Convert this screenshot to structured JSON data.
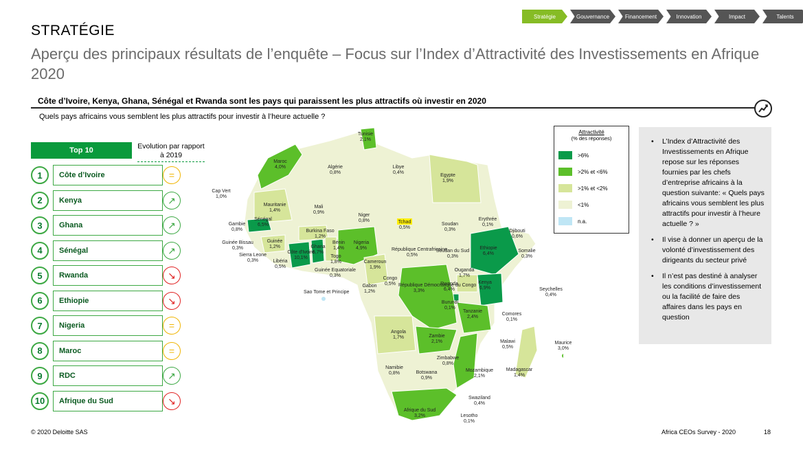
{
  "breadcrumb": [
    "Stratégie",
    "Gouvernance",
    "Financement",
    "Innovation",
    "Impact",
    "Talents"
  ],
  "section_title": "STRATÉGIE",
  "main_title": "Aperçu des principaux résultats de l’enquête – Focus sur l’Index d’Attractivité des Investissements en Afrique 2020",
  "headline": "Côte d’Ivoire, Kenya, Ghana, Sénégal et Rwanda sont les pays qui paraissent les plus attractifs où investir en 2020",
  "question": "Quels pays africains vous semblent les plus attractifs pour investir à l’heure actuelle ?",
  "top10": {
    "header": "Top 10",
    "evolution_header": "Evolution par rapport à 2019",
    "rows": [
      {
        "rank": "1",
        "country": "Côte d’Ivoire",
        "trend": "equal"
      },
      {
        "rank": "2",
        "country": "Kenya",
        "trend": "up"
      },
      {
        "rank": "3",
        "country": "Ghana",
        "trend": "up"
      },
      {
        "rank": "4",
        "country": "Sénégal",
        "trend": "up"
      },
      {
        "rank": "5",
        "country": "Rwanda",
        "trend": "down"
      },
      {
        "rank": "6",
        "country": "Ethiopie",
        "trend": "down"
      },
      {
        "rank": "7",
        "country": "Nigeria",
        "trend": "equal"
      },
      {
        "rank": "8",
        "country": "Maroc",
        "trend": "equal"
      },
      {
        "rank": "9",
        "country": "RDC",
        "trend": "up"
      },
      {
        "rank": "10",
        "country": "Afrique du Sud",
        "trend": "down"
      }
    ]
  },
  "trend_colors": {
    "equal": "#f0b400",
    "up": "#3ca843",
    "down": "#e02020"
  },
  "legend": {
    "title": "Attractivité",
    "subtitle": "(% des réponses)",
    "items": [
      {
        "label": ">6%",
        "color": "#0a9a4a"
      },
      {
        "label": ">2% et <6%",
        "color": "#5cbf2a"
      },
      {
        "label": ">1% et <2%",
        "color": "#d6e59a"
      },
      {
        "label": "<1%",
        "color": "#eef2d4"
      },
      {
        "label": "n.a.",
        "color": "#bfe6f5"
      }
    ]
  },
  "map_labels": [
    {
      "name": "Tunisie",
      "value": "2,1%"
    },
    {
      "name": "Maroc",
      "value": "4,0%"
    },
    {
      "name": "Algérie",
      "value": "0,8%"
    },
    {
      "name": "Libye",
      "value": "0,4%"
    },
    {
      "name": "Egypte",
      "value": "1,9%"
    },
    {
      "name": "Cap Vert",
      "value": "1,0%"
    },
    {
      "name": "Mauritanie",
      "value": "1,4%"
    },
    {
      "name": "Mali",
      "value": "0,9%"
    },
    {
      "name": "Niger",
      "value": "0,8%"
    },
    {
      "name": "Tchad",
      "value": "0,5%"
    },
    {
      "name": "Soudan",
      "value": "0,3%"
    },
    {
      "name": "Erythrée",
      "value": "0,1%"
    },
    {
      "name": "Djibouti",
      "value": "0,6%"
    },
    {
      "name": "Gambie",
      "value": "0,8%"
    },
    {
      "name": "Sénégal",
      "value": "6,5%"
    },
    {
      "name": "Guinée Bissau",
      "value": "0,3%"
    },
    {
      "name": "Sierra Leone",
      "value": "0,3%"
    },
    {
      "name": "Guinée",
      "value": "1,2%"
    },
    {
      "name": "Libéria",
      "value": "0,5%"
    },
    {
      "name": "Côte d’Ivoire",
      "value": "10,1%"
    },
    {
      "name": "Burkina Faso",
      "value": "1,2%"
    },
    {
      "name": "Ghana",
      "value": "6,7%"
    },
    {
      "name": "Bénin",
      "value": "1,4%"
    },
    {
      "name": "Togo",
      "value": "1,8%"
    },
    {
      "name": "Nigeria",
      "value": "4,9%"
    },
    {
      "name": "Guinée Equatoriale",
      "value": "0,3%"
    },
    {
      "name": "Cameroun",
      "value": "1,9%"
    },
    {
      "name": "République Centrafricaine",
      "value": "0,5%"
    },
    {
      "name": "Soudan du Sud",
      "value": "0,3%"
    },
    {
      "name": "Ethiopie",
      "value": "6,4%"
    },
    {
      "name": "Somalie",
      "value": "0,3%"
    },
    {
      "name": "Ouganda",
      "value": "1,7%"
    },
    {
      "name": "Kenya",
      "value": "6,9%"
    },
    {
      "name": "Rwanda",
      "value": "6,4%"
    },
    {
      "name": "Burundi",
      "value": "0,1%"
    },
    {
      "name": "Congo",
      "value": "0,5%"
    },
    {
      "name": "Gabon",
      "value": "1,2%"
    },
    {
      "name": "République Démocratique du Congo",
      "value": "3,3%"
    },
    {
      "name": "Sao Tome et Principe",
      "value": ""
    },
    {
      "name": "Seychelles",
      "value": "0,4%"
    },
    {
      "name": "Tanzanie",
      "value": "2,4%"
    },
    {
      "name": "Comores",
      "value": "0,1%"
    },
    {
      "name": "Angola",
      "value": "1,7%"
    },
    {
      "name": "Zambie",
      "value": "2,1%"
    },
    {
      "name": "Malawi",
      "value": "0,5%"
    },
    {
      "name": "Maurice",
      "value": "3,0%"
    },
    {
      "name": "Namibie",
      "value": "0,8%"
    },
    {
      "name": "Zimbabwe",
      "value": "0,8%"
    },
    {
      "name": "Botswana",
      "value": "0,9%"
    },
    {
      "name": "Mozambique",
      "value": "2,1%"
    },
    {
      "name": "Madagascar",
      "value": "1,4%"
    },
    {
      "name": "Swaziland",
      "value": "0,4%"
    },
    {
      "name": "Afrique du Sud",
      "value": "3,2%"
    },
    {
      "name": "Lesotho",
      "value": "0,1%"
    }
  ],
  "panel": {
    "bullets": [
      "L’Index d’Attractivité des Investissements en Afrique repose sur les réponses fournies par les chefs d’entreprise africains à la question suivante: « Quels pays africains vous semblent les plus attractifs pour investir à l’heure actuelle ? »",
      "Il vise à donner un aperçu de la volonté d’investissement des dirigeants du secteur privé",
      "Il n’est pas destiné à analyser les conditions d’investissement ou la facilité de faire des affaires dans les pays en question"
    ]
  },
  "footer": {
    "copyright": "© 2020 Deloitte SAS",
    "survey": "Africa CEOs Survey - 2020",
    "page": "18"
  }
}
